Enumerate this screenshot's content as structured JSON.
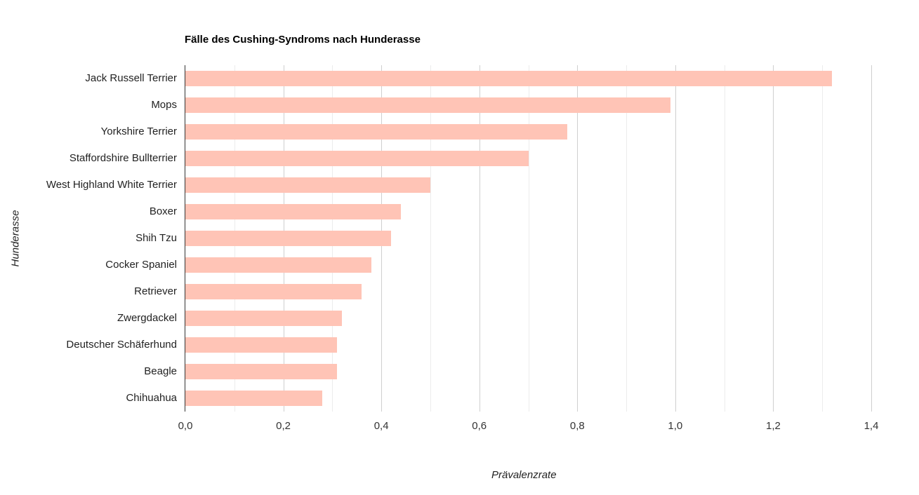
{
  "chart_data": {
    "type": "bar",
    "orientation": "horizontal",
    "title": "Fälle des Cushing-Syndroms nach Hunderasse",
    "xlabel": "Prävalenzrate",
    "ylabel": "Hunderasse",
    "categories": [
      "Jack Russell Terrier",
      "Mops",
      "Yorkshire Terrier",
      "Staffordshire Bullterrier",
      "West Highland White Terrier",
      "Boxer",
      "Shih Tzu",
      "Cocker Spaniel",
      "Retriever",
      "Zwergdackel",
      "Deutscher Schäferhund",
      "Beagle",
      "Chihuahua"
    ],
    "values": [
      1.32,
      0.99,
      0.78,
      0.7,
      0.5,
      0.44,
      0.42,
      0.38,
      0.36,
      0.32,
      0.31,
      0.31,
      0.28
    ],
    "xlim": [
      0,
      1.4
    ],
    "xticks": [
      "0,0",
      "0,2",
      "0,4",
      "0,6",
      "0,8",
      "1,0",
      "1,2",
      "1,4"
    ],
    "grid": true,
    "legend": "none",
    "bar_color": "#ffc4b6"
  }
}
